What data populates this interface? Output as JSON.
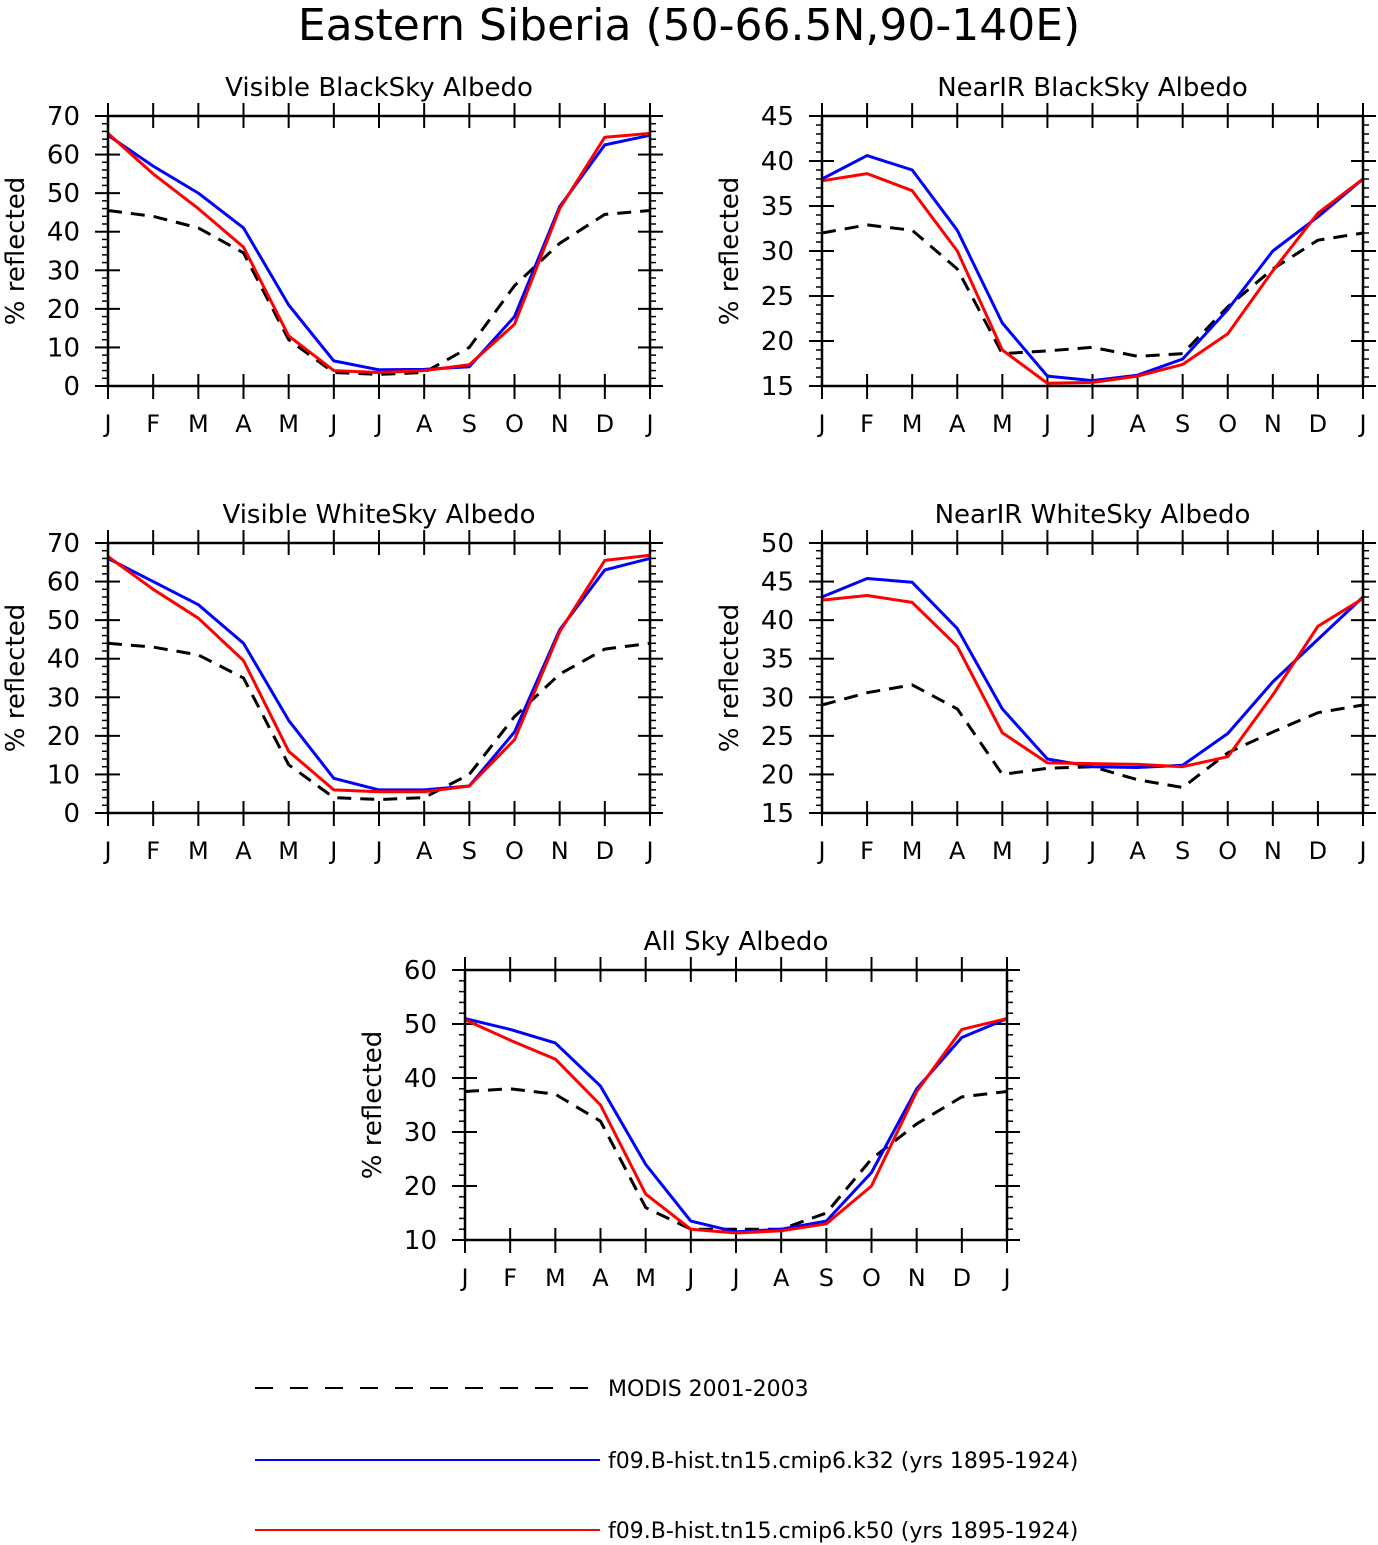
{
  "figure": {
    "title": "Eastern Siberia (50-66.5N,90-140E)"
  },
  "legend": {
    "items": [
      {
        "label": "MODIS 2001-2003",
        "color": "#000000",
        "style": "dashed"
      },
      {
        "label": "f09.B-hist.tn15.cmip6.k32 (yrs 1895-1924)",
        "color": "#0000ff",
        "style": "solid"
      },
      {
        "label": "f09.B-hist.tn15.cmip6.k50 (yrs 1895-1924)",
        "color": "#ff0000",
        "style": "solid"
      }
    ]
  },
  "chart_data": [
    {
      "type": "line",
      "title": "Visible BlackSky Albedo",
      "ylabel": "% reflected",
      "xlabel": "",
      "x": [
        "J",
        "F",
        "M",
        "A",
        "M",
        "J",
        "J",
        "A",
        "S",
        "O",
        "N",
        "D",
        "J"
      ],
      "ylim": [
        0,
        70
      ],
      "yticks": [
        0,
        10,
        20,
        30,
        40,
        50,
        60,
        70
      ],
      "series": [
        {
          "name": "MODIS 2001-2003",
          "color": "#000000",
          "style": "dashed",
          "values": [
            45.5,
            44,
            41,
            34.5,
            12,
            3.5,
            3,
            3.5,
            10,
            26,
            37,
            44.5,
            45.5
          ]
        },
        {
          "name": "f09.B-hist.tn15.cmip6.k32 (yrs 1895-1924)",
          "color": "#0000ff",
          "style": "solid",
          "values": [
            65,
            57,
            50,
            41,
            21,
            6.5,
            4.2,
            4.3,
            5,
            18,
            46.5,
            62.5,
            65
          ]
        },
        {
          "name": "f09.B-hist.tn15.cmip6.k50 (yrs 1895-1924)",
          "color": "#ff0000",
          "style": "solid",
          "values": [
            65.5,
            55,
            46,
            36,
            13,
            4,
            3.5,
            4,
            5.5,
            16,
            46,
            64.5,
            65.5
          ]
        }
      ]
    },
    {
      "type": "line",
      "title": "NearIR BlackSky Albedo",
      "ylabel": "% reflected",
      "xlabel": "",
      "x": [
        "J",
        "F",
        "M",
        "A",
        "M",
        "J",
        "J",
        "A",
        "S",
        "O",
        "N",
        "D",
        "J"
      ],
      "ylim": [
        15,
        45
      ],
      "yticks": [
        15,
        20,
        25,
        30,
        35,
        40,
        45
      ],
      "series": [
        {
          "name": "MODIS 2001-2003",
          "color": "#000000",
          "style": "dashed",
          "values": [
            32,
            32.9,
            32.3,
            28,
            18.6,
            18.9,
            19.3,
            18.3,
            18.6,
            23.8,
            28,
            31.2,
            32
          ]
        },
        {
          "name": "f09.B-hist.tn15.cmip6.k32 (yrs 1895-1924)",
          "color": "#0000ff",
          "style": "solid",
          "values": [
            38,
            40.6,
            39,
            32.3,
            22,
            16.1,
            15.6,
            16.2,
            18,
            23.5,
            30,
            33.8,
            38
          ]
        },
        {
          "name": "f09.B-hist.tn15.cmip6.k50 (yrs 1895-1924)",
          "color": "#ff0000",
          "style": "solid",
          "values": [
            37.8,
            38.6,
            36.7,
            30,
            19,
            15.3,
            15.4,
            16.1,
            17.4,
            20.8,
            27.8,
            34.2,
            38
          ]
        }
      ]
    },
    {
      "type": "line",
      "title": "Visible WhiteSky Albedo",
      "ylabel": "% reflected",
      "xlabel": "",
      "x": [
        "J",
        "F",
        "M",
        "A",
        "M",
        "J",
        "J",
        "A",
        "S",
        "O",
        "N",
        "D",
        "J"
      ],
      "ylim": [
        0,
        70
      ],
      "yticks": [
        0,
        10,
        20,
        30,
        40,
        50,
        60,
        70
      ],
      "series": [
        {
          "name": "MODIS 2001-2003",
          "color": "#000000",
          "style": "dashed",
          "values": [
            44,
            43,
            41,
            35,
            12.5,
            4,
            3.5,
            4,
            10,
            25,
            36,
            42.5,
            44
          ]
        },
        {
          "name": "f09.B-hist.tn15.cmip6.k32 (yrs 1895-1924)",
          "color": "#0000ff",
          "style": "solid",
          "values": [
            66,
            60,
            54,
            44,
            24,
            9,
            6,
            6,
            7,
            21,
            47.5,
            63,
            66
          ]
        },
        {
          "name": "f09.B-hist.tn15.cmip6.k50 (yrs 1895-1924)",
          "color": "#ff0000",
          "style": "solid",
          "values": [
            66.5,
            58,
            50.5,
            39.5,
            16,
            6,
            5.5,
            5.5,
            7,
            19,
            47,
            65.5,
            66.8
          ]
        }
      ]
    },
    {
      "type": "line",
      "title": "NearIR WhiteSky Albedo",
      "ylabel": "% reflected",
      "xlabel": "",
      "x": [
        "J",
        "F",
        "M",
        "A",
        "M",
        "J",
        "J",
        "A",
        "S",
        "O",
        "N",
        "D",
        "J"
      ],
      "ylim": [
        15,
        50
      ],
      "yticks": [
        15,
        20,
        25,
        30,
        35,
        40,
        45,
        50
      ],
      "series": [
        {
          "name": "MODIS 2001-2003",
          "color": "#000000",
          "style": "dashed",
          "values": [
            29,
            30.6,
            31.6,
            28.5,
            20,
            20.8,
            21,
            19.3,
            18.3,
            22.8,
            25.5,
            28,
            29
          ]
        },
        {
          "name": "f09.B-hist.tn15.cmip6.k32 (yrs 1895-1924)",
          "color": "#0000ff",
          "style": "solid",
          "values": [
            43,
            45.4,
            44.9,
            38.9,
            28.5,
            22,
            21,
            20.9,
            21.2,
            25.3,
            32,
            37.5,
            43
          ]
        },
        {
          "name": "f09.B-hist.tn15.cmip6.k50 (yrs 1895-1924)",
          "color": "#ff0000",
          "style": "solid",
          "values": [
            42.6,
            43.2,
            42.3,
            36.6,
            25.4,
            21.5,
            21.4,
            21.3,
            21,
            22.3,
            30.3,
            39.2,
            42.8
          ]
        }
      ]
    },
    {
      "type": "line",
      "title": "All Sky Albedo",
      "ylabel": "% reflected",
      "xlabel": "",
      "x": [
        "J",
        "F",
        "M",
        "A",
        "M",
        "J",
        "J",
        "A",
        "S",
        "O",
        "N",
        "D",
        "J"
      ],
      "ylim": [
        10,
        60
      ],
      "yticks": [
        10,
        20,
        30,
        40,
        50,
        60
      ],
      "series": [
        {
          "name": "MODIS 2001-2003",
          "color": "#000000",
          "style": "dashed",
          "values": [
            37.5,
            38,
            37,
            32,
            16,
            12,
            12,
            12,
            15,
            25,
            31.5,
            36.5,
            37.5
          ]
        },
        {
          "name": "f09.B-hist.tn15.cmip6.k32 (yrs 1895-1924)",
          "color": "#0000ff",
          "style": "solid",
          "values": [
            51,
            49,
            46.5,
            38.5,
            24,
            13.5,
            11.5,
            12,
            13.5,
            22.5,
            38,
            47.5,
            51
          ]
        },
        {
          "name": "f09.B-hist.tn15.cmip6.k50 (yrs 1895-1924)",
          "color": "#ff0000",
          "style": "solid",
          "values": [
            50.8,
            47,
            43.5,
            35,
            18.5,
            12,
            11.3,
            11.7,
            13,
            20,
            37.5,
            49,
            51
          ]
        }
      ]
    }
  ]
}
